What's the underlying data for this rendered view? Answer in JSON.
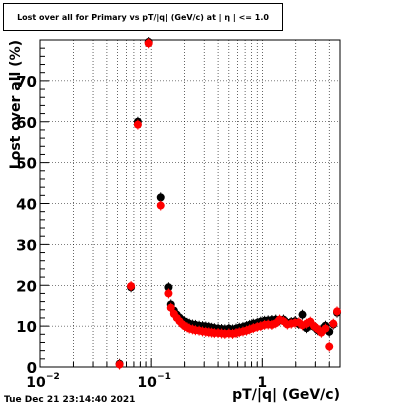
{
  "title": "Lost over all for Primary vs pT/|q| (GeV/c) at | η | <= 1.0",
  "timestamp": "Tue Dec 21 23:14:40 2021",
  "chart_data": {
    "type": "scatter",
    "title": "Lost over all for Primary vs pT/|q| (GeV/c) at | η | <= 1.0",
    "xlabel": "pT/|q| (GeV/c)",
    "ylabel": "Lost over all (%)",
    "xscale": "log",
    "xlim": [
      0.01,
      5.0
    ],
    "ylim": [
      0,
      80
    ],
    "xticks": [
      {
        "value": 0.01,
        "label": "10",
        "exp": "−2"
      },
      {
        "value": 0.1,
        "label": "10",
        "exp": "−1"
      },
      {
        "value": 1,
        "label": "1",
        "exp": ""
      }
    ],
    "yticks": [
      0,
      10,
      20,
      30,
      40,
      50,
      60,
      70
    ],
    "grid": true,
    "series": [
      {
        "color": "#000000",
        "x": [
          0.052,
          0.066,
          0.076,
          0.095,
          0.122,
          0.143,
          0.15,
          0.16,
          0.17,
          0.18,
          0.19,
          0.2,
          0.21,
          0.22,
          0.235,
          0.25,
          0.27,
          0.29,
          0.31,
          0.33,
          0.35,
          0.37,
          0.4,
          0.43,
          0.46,
          0.5,
          0.54,
          0.58,
          0.62,
          0.67,
          0.72,
          0.77,
          0.83,
          0.9,
          0.97,
          1.05,
          1.13,
          1.22,
          1.32,
          1.43,
          1.55,
          1.68,
          1.82,
          1.97,
          2.13,
          2.3,
          2.5,
          2.7,
          2.92,
          3.15,
          3.4,
          3.7,
          4.0,
          4.35,
          4.7
        ],
        "y": [
          0.8,
          19.5,
          60.0,
          79.5,
          41.5,
          19.5,
          15.3,
          13.8,
          12.8,
          12.1,
          11.5,
          11.1,
          10.8,
          10.6,
          10.4,
          10.3,
          10.1,
          10.0,
          9.9,
          9.8,
          9.6,
          9.5,
          9.4,
          9.3,
          9.2,
          9.4,
          9.2,
          9.4,
          9.6,
          9.8,
          10.0,
          10.3,
          10.6,
          10.8,
          11.1,
          11.3,
          11.4,
          11.5,
          11.6,
          11.4,
          11.6,
          10.8,
          11.0,
          11.2,
          10.5,
          12.8,
          9.5,
          10.2,
          9.8,
          9.0,
          9.2,
          10.1,
          8.6,
          10.4,
          13.3
        ]
      },
      {
        "color": "#ff0000",
        "x": [
          0.052,
          0.066,
          0.076,
          0.095,
          0.122,
          0.143,
          0.15,
          0.16,
          0.17,
          0.18,
          0.19,
          0.2,
          0.21,
          0.22,
          0.235,
          0.25,
          0.27,
          0.29,
          0.31,
          0.33,
          0.35,
          0.37,
          0.4,
          0.43,
          0.46,
          0.5,
          0.54,
          0.58,
          0.62,
          0.67,
          0.72,
          0.77,
          0.83,
          0.9,
          0.97,
          1.05,
          1.13,
          1.22,
          1.32,
          1.43,
          1.55,
          1.68,
          1.82,
          1.97,
          2.13,
          2.3,
          2.5,
          2.7,
          2.92,
          3.15,
          3.4,
          3.7,
          4.0,
          4.35,
          4.7
        ],
        "y": [
          0.6,
          19.8,
          59.3,
          79.2,
          39.5,
          18.0,
          14.5,
          13.0,
          12.0,
          11.2,
          10.5,
          10.0,
          9.7,
          9.4,
          9.2,
          9.0,
          8.9,
          8.7,
          8.6,
          8.5,
          8.4,
          8.3,
          8.3,
          8.2,
          8.1,
          8.2,
          8.1,
          8.3,
          8.5,
          8.7,
          8.9,
          9.2,
          9.5,
          9.8,
          10.0,
          10.3,
          10.4,
          10.3,
          10.7,
          11.6,
          11.2,
          10.4,
          10.6,
          10.8,
          10.9,
          10.2,
          10.6,
          11.1,
          10.0,
          9.3,
          8.4,
          9.4,
          5.0,
          10.6,
          13.6
        ]
      }
    ]
  }
}
